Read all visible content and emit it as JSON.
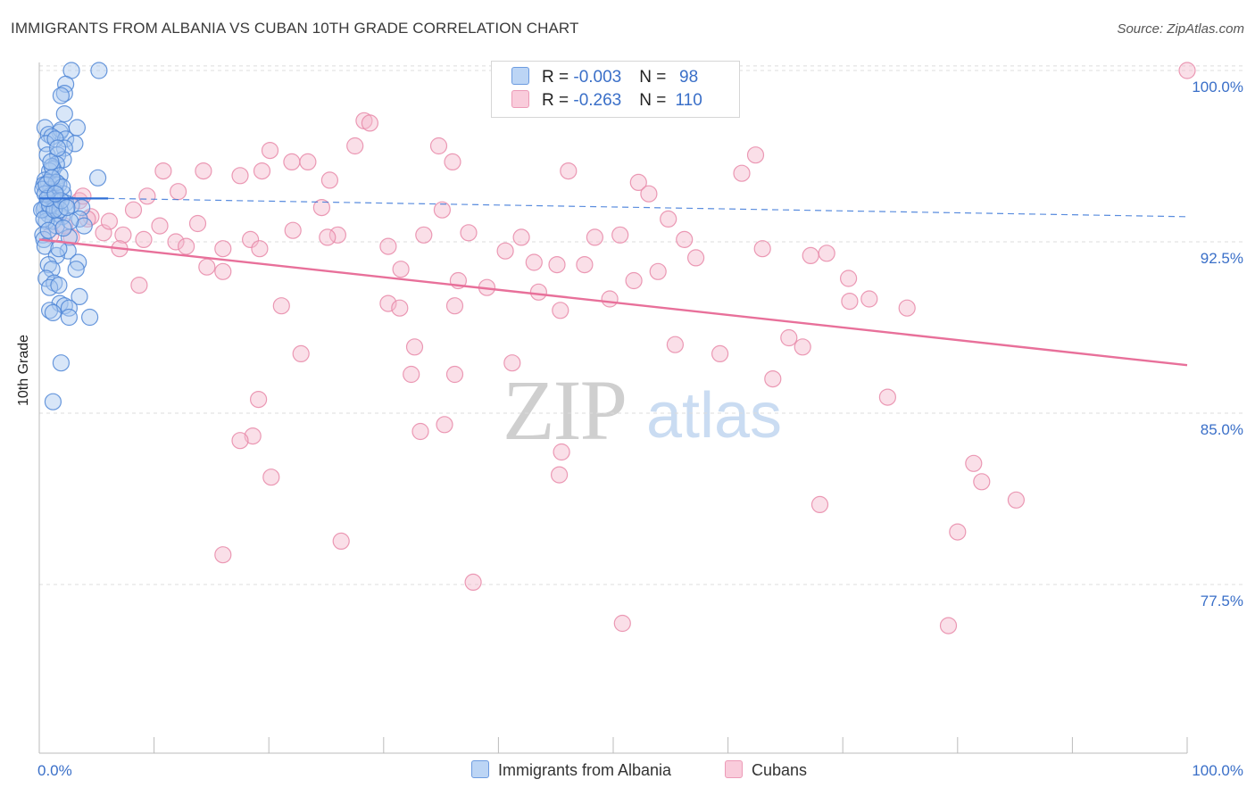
{
  "title": "IMMIGRANTS FROM ALBANIA VS CUBAN 10TH GRADE CORRELATION CHART",
  "source": "Source: ZipAtlas.com",
  "watermark": {
    "zip": "ZIP",
    "atlas": "atlas"
  },
  "legend": {
    "albania": {
      "r_label": "R = ",
      "r_value": "-0.003",
      "n_label": "N = ",
      "n_value": "98"
    },
    "cubans": {
      "r_label": "R = ",
      "r_value": "-0.263",
      "n_label": "N = ",
      "n_value": "110"
    }
  },
  "colors": {
    "albania_fill": "#a9c8f0",
    "albania_stroke": "#4f86d6",
    "albania_line": "#2f6fd6",
    "cubans_fill": "#f5b8cb",
    "cubans_stroke": "#e888a8",
    "cubans_line": "#e8709a",
    "tick_label": "#3a6fc8",
    "grid": "#dcdcdc"
  },
  "chart_data": {
    "type": "scatter",
    "title": "IMMIGRANTS FROM ALBANIA VS CUBAN 10TH GRADE CORRELATION CHART",
    "xlabel": "",
    "ylabel": "10th Grade",
    "xlim": [
      0,
      100
    ],
    "ylim": [
      70.5,
      101.5
    ],
    "x_tick_labels": [
      "0.0%",
      "100.0%"
    ],
    "y_ticks": [
      77.5,
      85.0,
      92.5,
      100.0
    ],
    "y_tick_labels": [
      "77.5%",
      "85.0%",
      "92.5%",
      "100.0%"
    ],
    "series": [
      {
        "name": "Immigrants from Albania",
        "trend": {
          "x": [
            0.0,
            6.0,
            100.0
          ],
          "y": [
            94.4,
            94.4,
            93.6
          ],
          "solid_until": 6.0
        },
        "points": [
          [
            2.8,
            100.0
          ],
          [
            5.2,
            100.0
          ],
          [
            2.3,
            99.4
          ],
          [
            2.2,
            99.0
          ],
          [
            1.9,
            98.9
          ],
          [
            2.2,
            98.1
          ],
          [
            0.5,
            97.5
          ],
          [
            1.8,
            97.3
          ],
          [
            3.3,
            97.5
          ],
          [
            0.8,
            97.2
          ],
          [
            1.9,
            97.4
          ],
          [
            1.1,
            97.1
          ],
          [
            2.3,
            97.0
          ],
          [
            3.1,
            96.8
          ],
          [
            0.6,
            96.8
          ],
          [
            1.4,
            97.0
          ],
          [
            2.2,
            96.6
          ],
          [
            0.7,
            96.3
          ],
          [
            1.6,
            96.3
          ],
          [
            2.1,
            96.1
          ],
          [
            1.5,
            95.9
          ],
          [
            1.2,
            95.7
          ],
          [
            0.9,
            95.6
          ],
          [
            1.1,
            95.8
          ],
          [
            0.5,
            95.2
          ],
          [
            1.8,
            95.4
          ],
          [
            5.1,
            95.3
          ],
          [
            0.8,
            95.1
          ],
          [
            1.4,
            95.0
          ],
          [
            1.7,
            95.0
          ],
          [
            0.4,
            95.0
          ],
          [
            1.0,
            94.8
          ],
          [
            1.4,
            94.7
          ],
          [
            0.3,
            94.8
          ],
          [
            2.1,
            94.6
          ],
          [
            0.9,
            94.5
          ],
          [
            1.2,
            94.4
          ],
          [
            1.6,
            94.3
          ],
          [
            0.7,
            94.2
          ],
          [
            2.3,
            94.2
          ],
          [
            0.5,
            94.0
          ],
          [
            1.3,
            94.0
          ],
          [
            2.8,
            94.1
          ],
          [
            3.7,
            94.0
          ],
          [
            0.4,
            93.9
          ],
          [
            1.0,
            93.8
          ],
          [
            1.7,
            93.7
          ],
          [
            0.8,
            93.7
          ],
          [
            2.0,
            93.6
          ],
          [
            3.5,
            93.5
          ],
          [
            1.2,
            93.4
          ],
          [
            0.6,
            93.4
          ],
          [
            1.5,
            93.2
          ],
          [
            3.9,
            93.2
          ],
          [
            0.3,
            92.8
          ],
          [
            2.6,
            92.7
          ],
          [
            0.4,
            92.6
          ],
          [
            0.5,
            92.3
          ],
          [
            2.5,
            92.1
          ],
          [
            1.5,
            91.9
          ],
          [
            0.8,
            91.5
          ],
          [
            3.4,
            91.6
          ],
          [
            1.1,
            91.3
          ],
          [
            3.2,
            91.3
          ],
          [
            0.6,
            90.9
          ],
          [
            1.3,
            90.7
          ],
          [
            0.9,
            90.5
          ],
          [
            1.7,
            90.6
          ],
          [
            3.5,
            90.1
          ],
          [
            1.8,
            89.8
          ],
          [
            2.2,
            89.7
          ],
          [
            0.9,
            89.5
          ],
          [
            1.2,
            89.4
          ],
          [
            2.6,
            89.6
          ],
          [
            4.4,
            89.2
          ],
          [
            2.6,
            89.2
          ],
          [
            1.9,
            87.2
          ],
          [
            1.2,
            85.5
          ],
          [
            0.5,
            94.6
          ],
          [
            1.5,
            95.1
          ],
          [
            2.0,
            94.9
          ],
          [
            0.2,
            93.9
          ],
          [
            0.9,
            94.1
          ],
          [
            1.8,
            93.9
          ],
          [
            2.7,
            93.4
          ],
          [
            1.0,
            96.0
          ],
          [
            1.6,
            96.6
          ],
          [
            0.4,
            93.5
          ],
          [
            1.3,
            93.9
          ],
          [
            0.7,
            94.4
          ],
          [
            1.9,
            94.3
          ],
          [
            2.4,
            94.0
          ],
          [
            0.6,
            95.0
          ],
          [
            1.1,
            95.3
          ],
          [
            1.4,
            94.6
          ],
          [
            0.8,
            93.0
          ],
          [
            2.1,
            93.1
          ],
          [
            1.7,
            92.2
          ]
        ]
      },
      {
        "name": "Cubans",
        "trend": {
          "x": [
            0.0,
            100.0
          ],
          "y": [
            92.6,
            87.1
          ]
        },
        "points": [
          [
            100.0,
            100.0
          ],
          [
            28.3,
            97.8
          ],
          [
            28.8,
            97.7
          ],
          [
            27.5,
            96.7
          ],
          [
            20.1,
            96.5
          ],
          [
            34.8,
            96.7
          ],
          [
            62.4,
            96.3
          ],
          [
            22.0,
            96.0
          ],
          [
            23.4,
            96.0
          ],
          [
            36.0,
            96.0
          ],
          [
            10.8,
            95.6
          ],
          [
            14.3,
            95.6
          ],
          [
            19.4,
            95.6
          ],
          [
            46.1,
            95.6
          ],
          [
            17.5,
            95.4
          ],
          [
            61.2,
            95.5
          ],
          [
            25.3,
            95.2
          ],
          [
            52.2,
            95.1
          ],
          [
            9.4,
            94.5
          ],
          [
            53.1,
            94.6
          ],
          [
            3.5,
            94.3
          ],
          [
            24.6,
            94.0
          ],
          [
            8.2,
            93.9
          ],
          [
            35.1,
            93.9
          ],
          [
            4.5,
            93.6
          ],
          [
            54.8,
            93.5
          ],
          [
            13.8,
            93.3
          ],
          [
            22.1,
            93.0
          ],
          [
            26.0,
            92.8
          ],
          [
            37.4,
            92.9
          ],
          [
            5.6,
            92.9
          ],
          [
            7.3,
            92.8
          ],
          [
            9.1,
            92.6
          ],
          [
            11.9,
            92.5
          ],
          [
            18.4,
            92.6
          ],
          [
            25.1,
            92.7
          ],
          [
            33.5,
            92.8
          ],
          [
            42.0,
            92.7
          ],
          [
            48.4,
            92.7
          ],
          [
            50.6,
            92.8
          ],
          [
            56.2,
            92.6
          ],
          [
            7.0,
            92.2
          ],
          [
            12.8,
            92.3
          ],
          [
            16.0,
            92.2
          ],
          [
            19.2,
            92.2
          ],
          [
            30.4,
            92.3
          ],
          [
            63.0,
            92.2
          ],
          [
            67.2,
            91.9
          ],
          [
            68.6,
            92.0
          ],
          [
            2.8,
            92.7
          ],
          [
            1.0,
            92.8
          ],
          [
            40.6,
            92.1
          ],
          [
            43.1,
            91.6
          ],
          [
            47.5,
            91.5
          ],
          [
            57.2,
            91.8
          ],
          [
            14.6,
            91.4
          ],
          [
            16.0,
            91.2
          ],
          [
            31.5,
            91.3
          ],
          [
            45.1,
            91.5
          ],
          [
            53.9,
            91.2
          ],
          [
            51.8,
            90.8
          ],
          [
            43.5,
            90.3
          ],
          [
            36.5,
            90.8
          ],
          [
            8.7,
            90.6
          ],
          [
            70.5,
            90.9
          ],
          [
            49.7,
            90.0
          ],
          [
            36.2,
            89.7
          ],
          [
            21.1,
            89.7
          ],
          [
            30.4,
            89.8
          ],
          [
            31.4,
            89.6
          ],
          [
            45.4,
            89.5
          ],
          [
            39.0,
            90.5
          ],
          [
            70.6,
            89.9
          ],
          [
            72.3,
            90.0
          ],
          [
            75.6,
            89.6
          ],
          [
            65.3,
            88.3
          ],
          [
            66.5,
            87.9
          ],
          [
            55.4,
            88.0
          ],
          [
            59.3,
            87.6
          ],
          [
            22.8,
            87.6
          ],
          [
            32.7,
            87.9
          ],
          [
            41.2,
            87.2
          ],
          [
            32.4,
            86.7
          ],
          [
            36.2,
            86.7
          ],
          [
            63.9,
            86.5
          ],
          [
            19.1,
            85.6
          ],
          [
            73.9,
            85.7
          ],
          [
            35.3,
            84.5
          ],
          [
            33.2,
            84.2
          ],
          [
            18.6,
            84.0
          ],
          [
            17.5,
            83.8
          ],
          [
            45.5,
            83.3
          ],
          [
            45.3,
            82.3
          ],
          [
            81.4,
            82.8
          ],
          [
            20.2,
            82.2
          ],
          [
            82.1,
            82.0
          ],
          [
            68.0,
            81.0
          ],
          [
            85.1,
            81.2
          ],
          [
            80.0,
            79.8
          ],
          [
            26.3,
            79.4
          ],
          [
            16.0,
            78.8
          ],
          [
            37.8,
            77.6
          ],
          [
            50.8,
            75.8
          ],
          [
            79.2,
            75.7
          ],
          [
            3.8,
            94.5
          ],
          [
            6.1,
            93.4
          ],
          [
            10.5,
            93.2
          ],
          [
            2.2,
            93.2
          ],
          [
            4.2,
            93.5
          ],
          [
            12.1,
            94.7
          ]
        ]
      }
    ]
  },
  "bottom_legend": {
    "albania": "Immigrants from Albania",
    "cubans": "Cubans"
  }
}
